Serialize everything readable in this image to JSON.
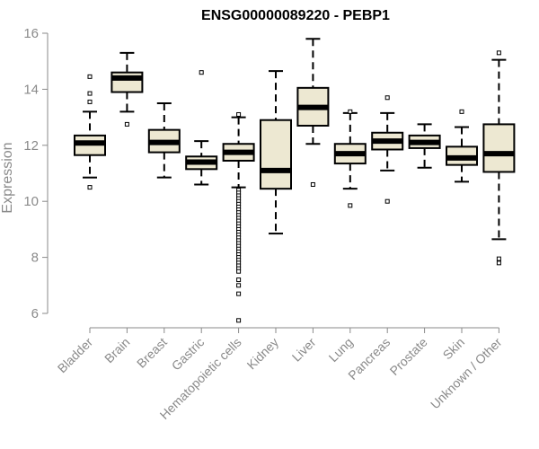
{
  "chart_data": {
    "type": "boxplot",
    "title": "ENSG00000089220 - PEBP1",
    "xlabel": "",
    "ylabel": "Expression",
    "ylim": [
      5.5,
      16.3
    ],
    "yticks": [
      6,
      8,
      10,
      12,
      14,
      16
    ],
    "colors": {
      "box_fill": "#ede8d2",
      "box_stroke": "#000000",
      "median": "#000000",
      "axis": "#8a8a8a"
    },
    "categories": [
      "Bladder",
      "Brain",
      "Breast",
      "Gastric",
      "Hematopoietic cells",
      "Kidney",
      "Liver",
      "Lung",
      "Pancreas",
      "Prostate",
      "Skin",
      "Unknown / Other"
    ],
    "boxes": [
      {
        "category": "Bladder",
        "whisker_low": 10.85,
        "q1": 11.65,
        "median": 12.08,
        "q3": 12.35,
        "whisker_high": 13.2,
        "outliers": [
          10.5,
          13.55,
          13.85,
          14.45
        ]
      },
      {
        "category": "Brain",
        "whisker_low": 13.2,
        "q1": 13.9,
        "median": 14.4,
        "q3": 14.6,
        "whisker_high": 15.3,
        "outliers": [
          12.75
        ]
      },
      {
        "category": "Breast",
        "whisker_low": 10.85,
        "q1": 11.75,
        "median": 12.1,
        "q3": 12.55,
        "whisker_high": 13.5,
        "outliers": []
      },
      {
        "category": "Gastric",
        "whisker_low": 10.6,
        "q1": 11.15,
        "median": 11.4,
        "q3": 11.6,
        "whisker_high": 12.15,
        "outliers": [
          14.6
        ]
      },
      {
        "category": "Hematopoietic cells",
        "whisker_low": 10.5,
        "q1": 11.45,
        "median": 11.75,
        "q3": 12.05,
        "whisker_high": 13.0,
        "outliers": [
          13.1,
          10.4,
          10.3,
          10.2,
          10.1,
          10.0,
          9.9,
          9.8,
          9.7,
          9.6,
          9.5,
          9.4,
          9.3,
          9.2,
          9.1,
          9.0,
          8.9,
          8.8,
          8.7,
          8.6,
          8.5,
          8.4,
          8.3,
          8.2,
          8.1,
          8.0,
          7.9,
          7.8,
          7.7,
          7.6,
          7.5,
          7.2,
          7.0,
          6.7,
          5.75
        ]
      },
      {
        "category": "Kidney",
        "whisker_low": 8.85,
        "q1": 10.45,
        "median": 11.1,
        "q3": 12.9,
        "whisker_high": 14.65,
        "outliers": []
      },
      {
        "category": "Liver",
        "whisker_low": 12.05,
        "q1": 12.7,
        "median": 13.35,
        "q3": 14.05,
        "whisker_high": 15.8,
        "outliers": [
          10.6
        ]
      },
      {
        "category": "Lung",
        "whisker_low": 10.45,
        "q1": 11.35,
        "median": 11.7,
        "q3": 12.05,
        "whisker_high": 13.15,
        "outliers": [
          9.85,
          13.2
        ]
      },
      {
        "category": "Pancreas",
        "whisker_low": 11.1,
        "q1": 11.85,
        "median": 12.15,
        "q3": 12.45,
        "whisker_high": 13.15,
        "outliers": [
          10.0,
          13.7
        ]
      },
      {
        "category": "Prostate",
        "whisker_low": 11.2,
        "q1": 11.9,
        "median": 12.1,
        "q3": 12.35,
        "whisker_high": 12.75,
        "outliers": []
      },
      {
        "category": "Skin",
        "whisker_low": 10.7,
        "q1": 11.3,
        "median": 11.55,
        "q3": 11.95,
        "whisker_high": 12.65,
        "outliers": [
          13.2
        ]
      },
      {
        "category": "Unknown / Other",
        "whisker_low": 8.65,
        "q1": 11.05,
        "median": 11.7,
        "q3": 12.75,
        "whisker_high": 15.05,
        "outliers": [
          15.3,
          7.95,
          7.8
        ]
      }
    ]
  }
}
